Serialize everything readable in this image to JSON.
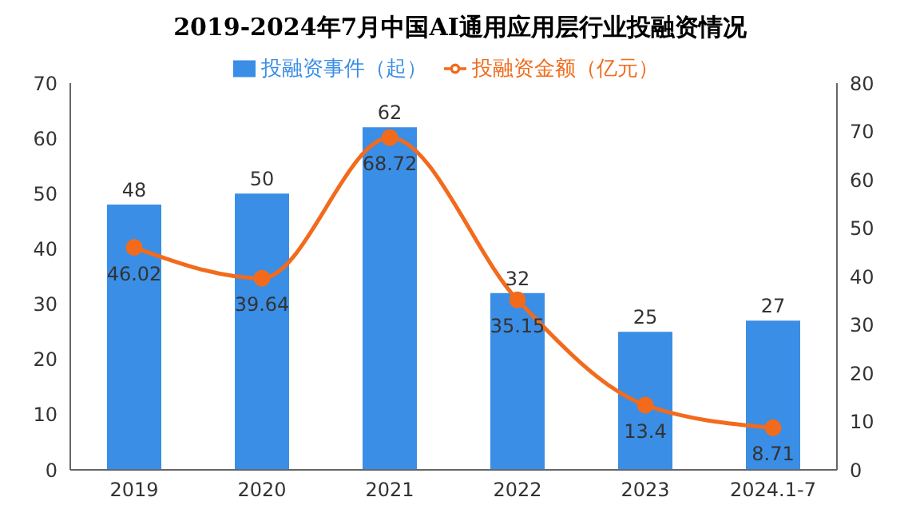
{
  "chart_data": {
    "type": "bar",
    "title": "2019-2024年7月中国AI通用应用层行业投融资情况",
    "categories": [
      "2019",
      "2020",
      "2021",
      "2022",
      "2023",
      "2024.1-7"
    ],
    "series": [
      {
        "name": "投融资事件（起）",
        "color": "#3a8ee6",
        "values": [
          48,
          50,
          62,
          32,
          25,
          27
        ]
      },
      {
        "name": "投融资金额（亿元）",
        "type": "line",
        "axis": "y2",
        "color": "#f26b1d",
        "values": [
          46.02,
          39.64,
          68.72,
          35.15,
          13.4,
          8.71
        ]
      }
    ],
    "ylim": [
      0,
      70
    ],
    "yticks": [
      0,
      10,
      20,
      30,
      40,
      50,
      60,
      70
    ],
    "y2lim": [
      0,
      80
    ],
    "y2ticks": [
      0,
      10,
      20,
      30,
      40,
      50,
      60,
      70,
      80
    ],
    "data_labels": true,
    "legend": "top",
    "grid": false,
    "marker": "circle"
  }
}
